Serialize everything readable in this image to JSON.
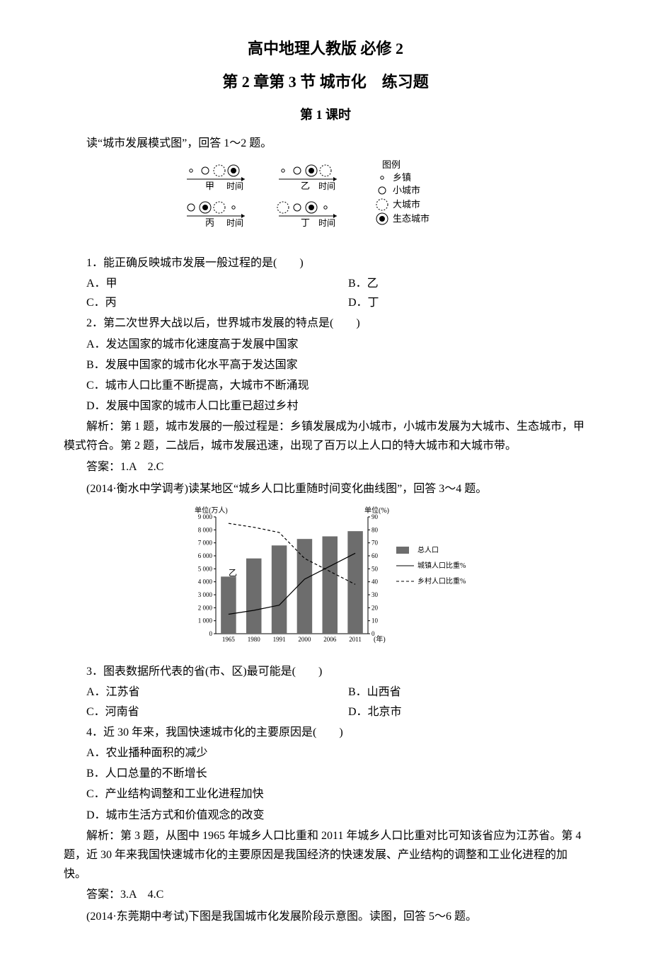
{
  "book": "高中地理人教版 必修 2",
  "chapter": "第 2 章第 3 节 城市化　练习题",
  "lesson": "第 1 课时",
  "section1": {
    "intro": "读“城市发展模式图”，回答 1～2 题。",
    "dev_diagram": {
      "labels": {
        "jia": "甲",
        "yi": "乙",
        "bing": "丙",
        "ding": "丁",
        "time": "时间"
      },
      "legend_title": "图例",
      "legend": [
        {
          "sym": "dot",
          "label": "乡镇",
          "fill": "#ffffff",
          "stroke": "#000000"
        },
        {
          "sym": "circle",
          "label": "小城市",
          "fill": "#ffffff",
          "stroke": "#000000"
        },
        {
          "sym": "dashed",
          "label": "大城市",
          "fill": "#ffffff",
          "stroke": "#000000"
        },
        {
          "sym": "eco",
          "label": "生态城市",
          "fill": "#000000",
          "stroke": "#000000"
        }
      ],
      "glyph_colors": {
        "stroke": "#000000",
        "fill_solid": "#000000",
        "fill_open": "#ffffff"
      }
    },
    "q1": {
      "text": "1．能正确反映城市发展一般过程的是(　　)",
      "opts": [
        {
          "k": "A．甲"
        },
        {
          "k": "B．乙"
        },
        {
          "k": "C．丙"
        },
        {
          "k": "D．丁"
        }
      ]
    },
    "q2": {
      "text": "2．第二次世界大战以后，世界城市发展的特点是(　　)",
      "opts": [
        "A．发达国家的城市化速度高于发展中国家",
        "B．发展中国家的城市化水平高于发达国家",
        "C．城市人口比重不断提高，大城市不断涌现",
        "D．发展中国家的城市人口比重已超过乡村"
      ]
    },
    "analysis": "解析：第 1 题，城市发展的一般过程是：乡镇发展成为小城市，小城市发展为大城市、生态城市，甲模式符合。第 2 题，二战后，城市发展迅速，出现了百万以上人口的特大城市和大城市带。",
    "answer": "答案：1.A　2.C"
  },
  "section2": {
    "intro": "(2014·衡水中学调考)读某地区“城乡人口比重随时间变化曲线图”，回答 3～4 题。",
    "chart": {
      "type": "combo-bar-line",
      "left_axis_label": "单位(万人)",
      "right_axis_label": "单位(%)",
      "years": [
        "1965",
        "1980",
        "1991",
        "2000",
        "2006",
        "2011"
      ],
      "pop_values": [
        4400,
        5800,
        6800,
        7300,
        7500,
        7900
      ],
      "left_ylim": [
        0,
        9000
      ],
      "left_tick_step": 1000,
      "right_ylim": [
        0,
        90
      ],
      "right_tick_step": 10,
      "urban_pct": [
        15,
        18,
        22,
        42,
        52,
        62
      ],
      "rural_pct": [
        85,
        82,
        78,
        58,
        48,
        38
      ],
      "yi_label": "乙",
      "bar_color": "#6d6d6d",
      "urban_line": {
        "color": "#000000",
        "dash": "none"
      },
      "rural_line": {
        "color": "#000000",
        "dash": "4 3"
      },
      "grid_color": "#000000",
      "background": "#ffffff",
      "legend": [
        {
          "type": "rect",
          "label": "总人口",
          "color": "#6d6d6d"
        },
        {
          "type": "line",
          "label": "城镇人口比重%",
          "dash": "none",
          "color": "#000000"
        },
        {
          "type": "line",
          "label": "乡村人口比重%",
          "dash": "4 3",
          "color": "#000000"
        }
      ],
      "xlabel": "(年)"
    },
    "q3": {
      "text": "3．图表数据所代表的省(市、区)最可能是(　　)",
      "opts": [
        {
          "k": "A．江苏省"
        },
        {
          "k": "B．山西省"
        },
        {
          "k": "C．河南省"
        },
        {
          "k": "D．北京市"
        }
      ]
    },
    "q4": {
      "text": "4．近 30 年来，我国快速城市化的主要原因是(　　)",
      "opts": [
        "A．农业播种面积的减少",
        "B．人口总量的不断增长",
        "C．产业结构调整和工业化进程加快",
        "D．城市生活方式和价值观念的改变"
      ]
    },
    "analysis": "解析：第 3 题，从图中 1965 年城乡人口比重和 2011 年城乡人口比重对比可知该省应为江苏省。第 4 题，近 30 年来我国快速城市化的主要原因是我国经济的快速发展、产业结构的调整和工业化进程的加快。",
    "answer": "答案：3.A　4.C",
    "next": "(2014·东莞期中考试)下图是我国城市化发展阶段示意图。读图，回答 5～6 题。"
  }
}
